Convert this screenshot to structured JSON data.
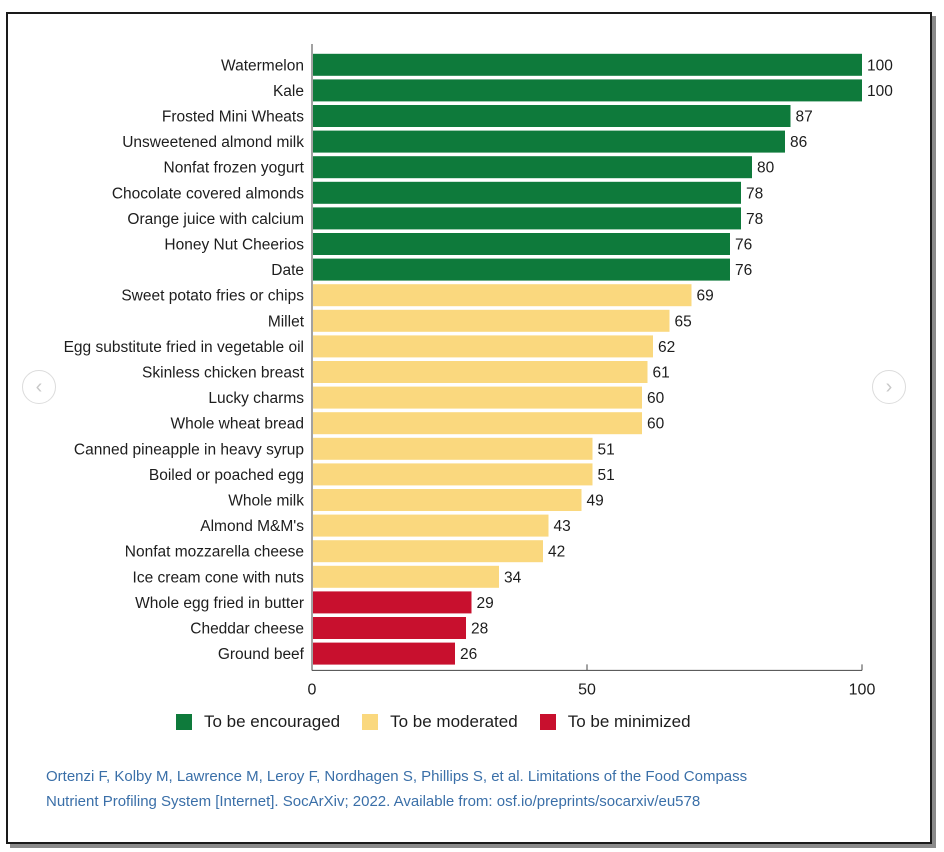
{
  "chart_data": {
    "type": "bar",
    "orientation": "horizontal",
    "title": "",
    "xlabel": "",
    "ylabel": "",
    "xlim": [
      0,
      100
    ],
    "xticks": [
      0,
      50,
      100
    ],
    "xtick_labels": [
      "0",
      "50",
      "100"
    ],
    "categories": [
      "Watermelon",
      "Kale",
      "Frosted Mini Wheats",
      "Unsweetened almond milk",
      "Nonfat frozen yogurt",
      "Chocolate covered almonds",
      "Orange juice with calcium",
      "Honey Nut Cheerios",
      "Date",
      "Sweet potato fries or chips",
      "Millet",
      "Egg substitute fried in vegetable oil",
      "Skinless chicken breast",
      "Lucky charms",
      "Whole wheat bread",
      "Canned pineapple in heavy syrup",
      "Boiled or poached egg",
      "Whole milk",
      "Almond M&M's",
      "Nonfat mozzarella cheese",
      "Ice cream cone with nuts",
      "Whole egg fried in butter",
      "Cheddar cheese",
      "Ground beef"
    ],
    "values": [
      100,
      100,
      87,
      86,
      80,
      78,
      78,
      76,
      76,
      69,
      65,
      62,
      61,
      60,
      60,
      51,
      51,
      49,
      43,
      42,
      34,
      29,
      28,
      26
    ],
    "groups": [
      "encouraged",
      "encouraged",
      "encouraged",
      "encouraged",
      "encouraged",
      "encouraged",
      "encouraged",
      "encouraged",
      "encouraged",
      "moderated",
      "moderated",
      "moderated",
      "moderated",
      "moderated",
      "moderated",
      "moderated",
      "moderated",
      "moderated",
      "moderated",
      "moderated",
      "moderated",
      "minimized",
      "minimized",
      "minimized"
    ],
    "legend": [
      {
        "key": "encouraged",
        "label": "To be encouraged",
        "color": "#0e7a3b"
      },
      {
        "key": "moderated",
        "label": "To be moderated",
        "color": "#fad87e"
      },
      {
        "key": "minimized",
        "label": "To be minimized",
        "color": "#c8102e"
      }
    ],
    "legend_position": "bottom"
  },
  "citation": {
    "line1": "Ortenzi F, Kolby M, Lawrence M, Leroy F, Nordhagen S, Phillips S, et al. Limitations of the Food Compass",
    "line2": "Nutrient Profiling System [Internet]. SocArXiv; 2022. Available from: osf.io/preprints/socarxiv/eu578"
  },
  "nav": {
    "prev_icon": "chevron-left-icon",
    "next_icon": "chevron-right-icon",
    "prev_glyph": "‹",
    "next_glyph": "›"
  }
}
